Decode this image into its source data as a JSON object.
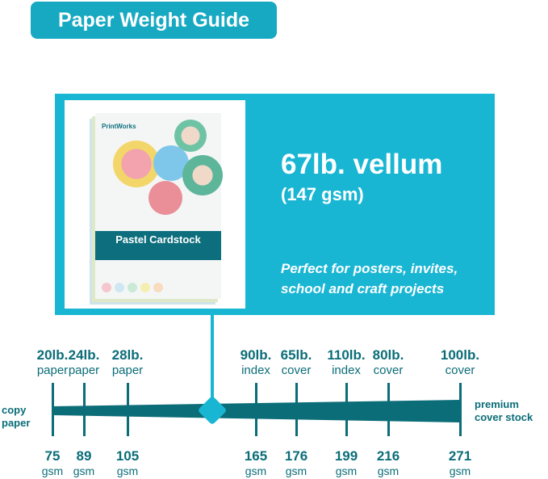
{
  "title": "Paper Weight Guide",
  "product": {
    "heading": "67lb. vellum",
    "gsm": "(147 gsm)",
    "description_line1": "Perfect for posters, invites,",
    "description_line2": "school and craft projects",
    "package_brand": "PrintWorks",
    "package_name": "Pastel Cardstock"
  },
  "scale": {
    "left_label": [
      "copy",
      "paper"
    ],
    "right_label": [
      "premium",
      "cover stock"
    ],
    "marker_gsm": 147,
    "colors": {
      "bar": "#0b6d78",
      "accent": "#19b6d4"
    },
    "ticks": [
      {
        "weight": "20lb.",
        "type": "paper",
        "gsm": "75",
        "unit": "gsm"
      },
      {
        "weight": "24lb.",
        "type": "paper",
        "gsm": "89",
        "unit": "gsm"
      },
      {
        "weight": "28lb.",
        "type": "paper",
        "gsm": "105",
        "unit": "gsm"
      },
      {
        "weight": "90lb.",
        "type": "index",
        "gsm": "165",
        "unit": "gsm"
      },
      {
        "weight": "65lb.",
        "type": "cover",
        "gsm": "176",
        "unit": "gsm"
      },
      {
        "weight": "110lb.",
        "type": "index",
        "gsm": "199",
        "unit": "gsm"
      },
      {
        "weight": "80lb.",
        "type": "cover",
        "gsm": "216",
        "unit": "gsm"
      },
      {
        "weight": "100lb.",
        "type": "cover",
        "gsm": "271",
        "unit": "gsm"
      }
    ]
  }
}
